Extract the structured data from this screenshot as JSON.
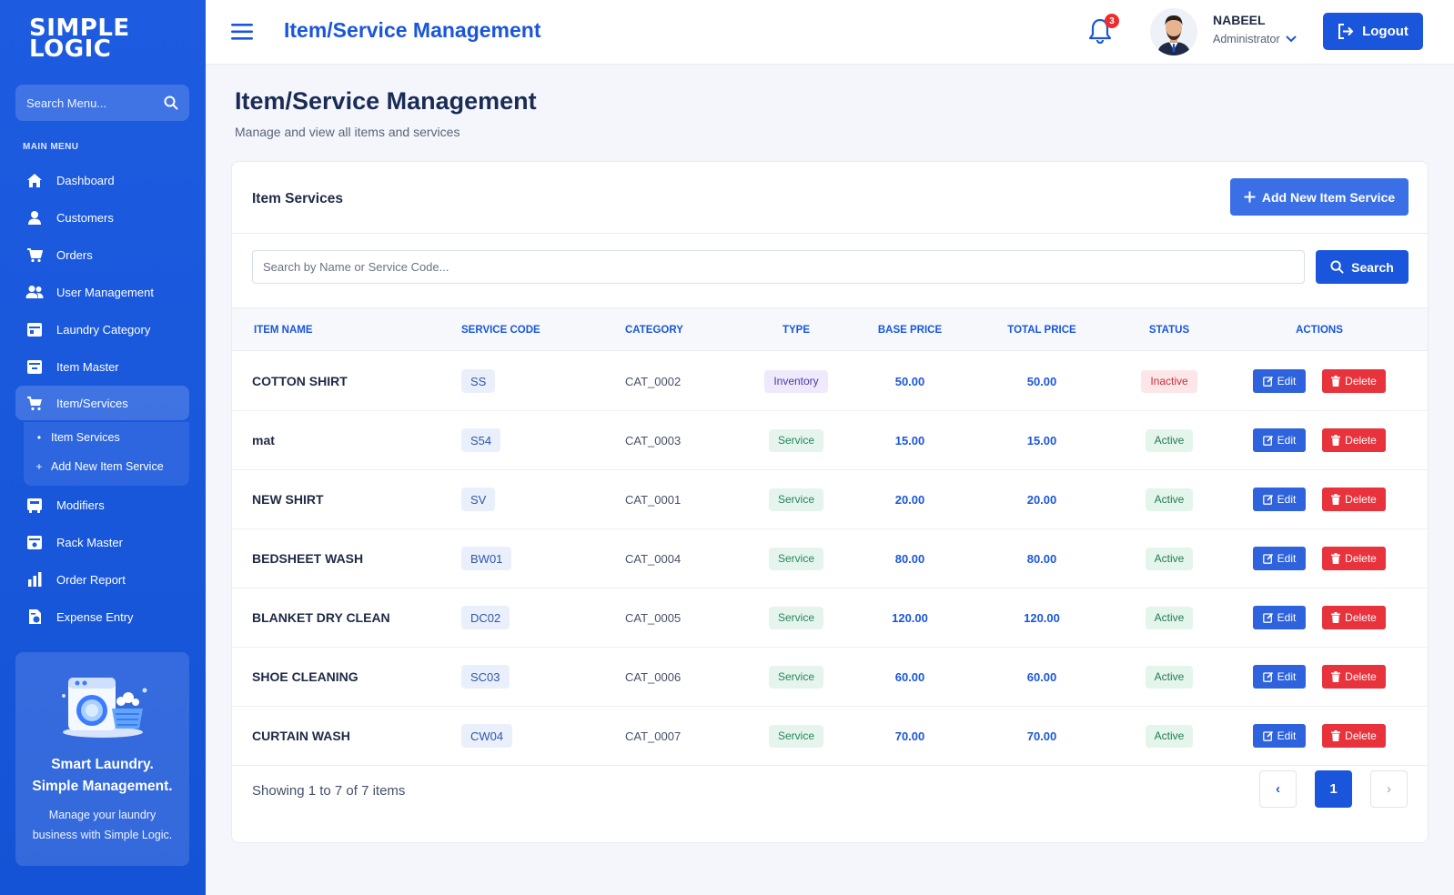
{
  "brand": {
    "line1": "SIMPLE",
    "line2": "LOGIC"
  },
  "sidebar": {
    "search_placeholder": "Search Menu...",
    "section_label": "MAIN MENU",
    "items": [
      {
        "label": "Dashboard",
        "icon": "home-icon"
      },
      {
        "label": "Customers",
        "icon": "user-icon"
      },
      {
        "label": "Orders",
        "icon": "cart-icon"
      },
      {
        "label": "User Management",
        "icon": "users-icon"
      },
      {
        "label": "Laundry Category",
        "icon": "category-icon"
      },
      {
        "label": "Item Master",
        "icon": "box-icon"
      },
      {
        "label": "Item/Services",
        "icon": "cart-icon",
        "active": true
      },
      {
        "label": "Modifiers",
        "icon": "modifier-icon"
      },
      {
        "label": "Rack Master",
        "icon": "rack-icon"
      },
      {
        "label": "Order Report",
        "icon": "chart-icon"
      },
      {
        "label": "Expense Entry",
        "icon": "expense-icon"
      }
    ],
    "submenu": [
      {
        "bullet": "•",
        "label": "Item Services"
      },
      {
        "bullet": "+",
        "label": "Add New Item Service"
      }
    ],
    "promo": {
      "title_line1": "Smart Laundry.",
      "title_line2": "Simple Management.",
      "text_line1": "Manage your laundry",
      "text_line2": "business with Simple Logic."
    }
  },
  "header": {
    "title": "Item/Service Management",
    "notification_count": "3",
    "user_name": "NABEEL",
    "user_role": "Administrator",
    "logout_label": "Logout"
  },
  "page": {
    "title": "Item/Service Management",
    "subtitle": "Manage and view all items and services"
  },
  "card": {
    "title": "Item Services",
    "add_button_label": "Add New Item Service",
    "search_placeholder": "Search by Name or Service Code...",
    "search_button_label": "Search",
    "columns": [
      "ITEM NAME",
      "SERVICE CODE",
      "CATEGORY",
      "TYPE",
      "BASE PRICE",
      "TOTAL PRICE",
      "STATUS",
      "ACTIONS"
    ],
    "rows": [
      {
        "name": "COTTON SHIRT",
        "code": "SS",
        "category": "CAT_0002",
        "type": "Inventory",
        "base": "50.00",
        "total": "50.00",
        "status": "Inactive"
      },
      {
        "name": "mat",
        "code": "S54",
        "category": "CAT_0003",
        "type": "Service",
        "base": "15.00",
        "total": "15.00",
        "status": "Active"
      },
      {
        "name": "NEW SHIRT",
        "code": "SV",
        "category": "CAT_0001",
        "type": "Service",
        "base": "20.00",
        "total": "20.00",
        "status": "Active"
      },
      {
        "name": "BEDSHEET WASH",
        "code": "BW01",
        "category": "CAT_0004",
        "type": "Service",
        "base": "80.00",
        "total": "80.00",
        "status": "Active"
      },
      {
        "name": "BLANKET DRY CLEAN",
        "code": "DC02",
        "category": "CAT_0005",
        "type": "Service",
        "base": "120.00",
        "total": "120.00",
        "status": "Active"
      },
      {
        "name": "SHOE CLEANING",
        "code": "SC03",
        "category": "CAT_0006",
        "type": "Service",
        "base": "60.00",
        "total": "60.00",
        "status": "Active"
      },
      {
        "name": "CURTAIN WASH",
        "code": "CW04",
        "category": "CAT_0007",
        "type": "Service",
        "base": "70.00",
        "total": "70.00",
        "status": "Active"
      }
    ],
    "edit_label": "Edit",
    "delete_label": "Delete",
    "footer_text": "Showing 1 to 7 of 7 items",
    "pagination": {
      "prev": "‹",
      "current": "1",
      "next": "›"
    }
  },
  "colors": {
    "primary": "#1a56db",
    "sidebar": "#1d5be0",
    "danger": "#e8323c",
    "success": "#227a53"
  }
}
